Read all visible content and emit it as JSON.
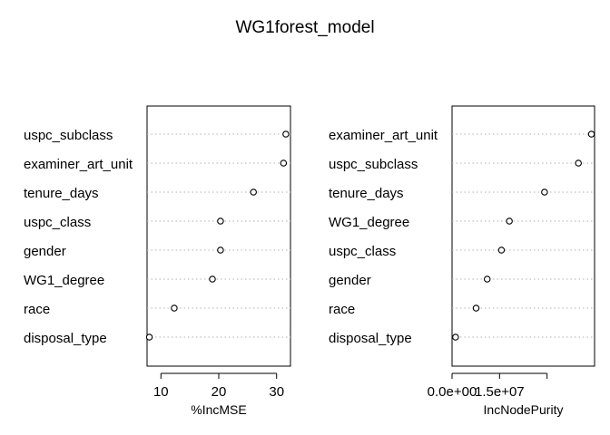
{
  "title": "WG1forest_model",
  "colors": {
    "grid": "#b0b0b0",
    "axis": "#000000",
    "point_stroke": "#000000",
    "point_fill": "#ffffff",
    "background": "#ffffff"
  },
  "chart_data": [
    {
      "type": "dotchart",
      "xlabel": "%IncMSE",
      "xlim": [
        7.6,
        32.4
      ],
      "ticks": [
        10,
        20,
        30
      ],
      "tick_labels": [
        "10",
        "20",
        "30"
      ],
      "grid": "dotted horizontal lines per row",
      "categories": [
        "uspc_subclass",
        "examiner_art_unit",
        "tenure_days",
        "uspc_class",
        "gender",
        "WG1_degree",
        "race",
        "disposal_type"
      ],
      "values": [
        31.6,
        31.2,
        26.0,
        20.3,
        20.3,
        18.9,
        12.3,
        8.0
      ]
    },
    {
      "type": "dotchart",
      "xlabel": "IncNodePurity",
      "xlim": [
        0,
        45000000
      ],
      "ticks": [
        0,
        15000000,
        30000000
      ],
      "tick_labels": [
        "0.0e+00",
        "1.5e+07",
        ""
      ],
      "grid": "dotted horizontal lines per row",
      "categories": [
        "examiner_art_unit",
        "uspc_subclass",
        "tenure_days",
        "WG1_degree",
        "uspc_class",
        "gender",
        "race",
        "disposal_type"
      ],
      "values": [
        44000000,
        39900000,
        29200000,
        18100000,
        15600000,
        11100000,
        7600000,
        1100000
      ]
    }
  ]
}
